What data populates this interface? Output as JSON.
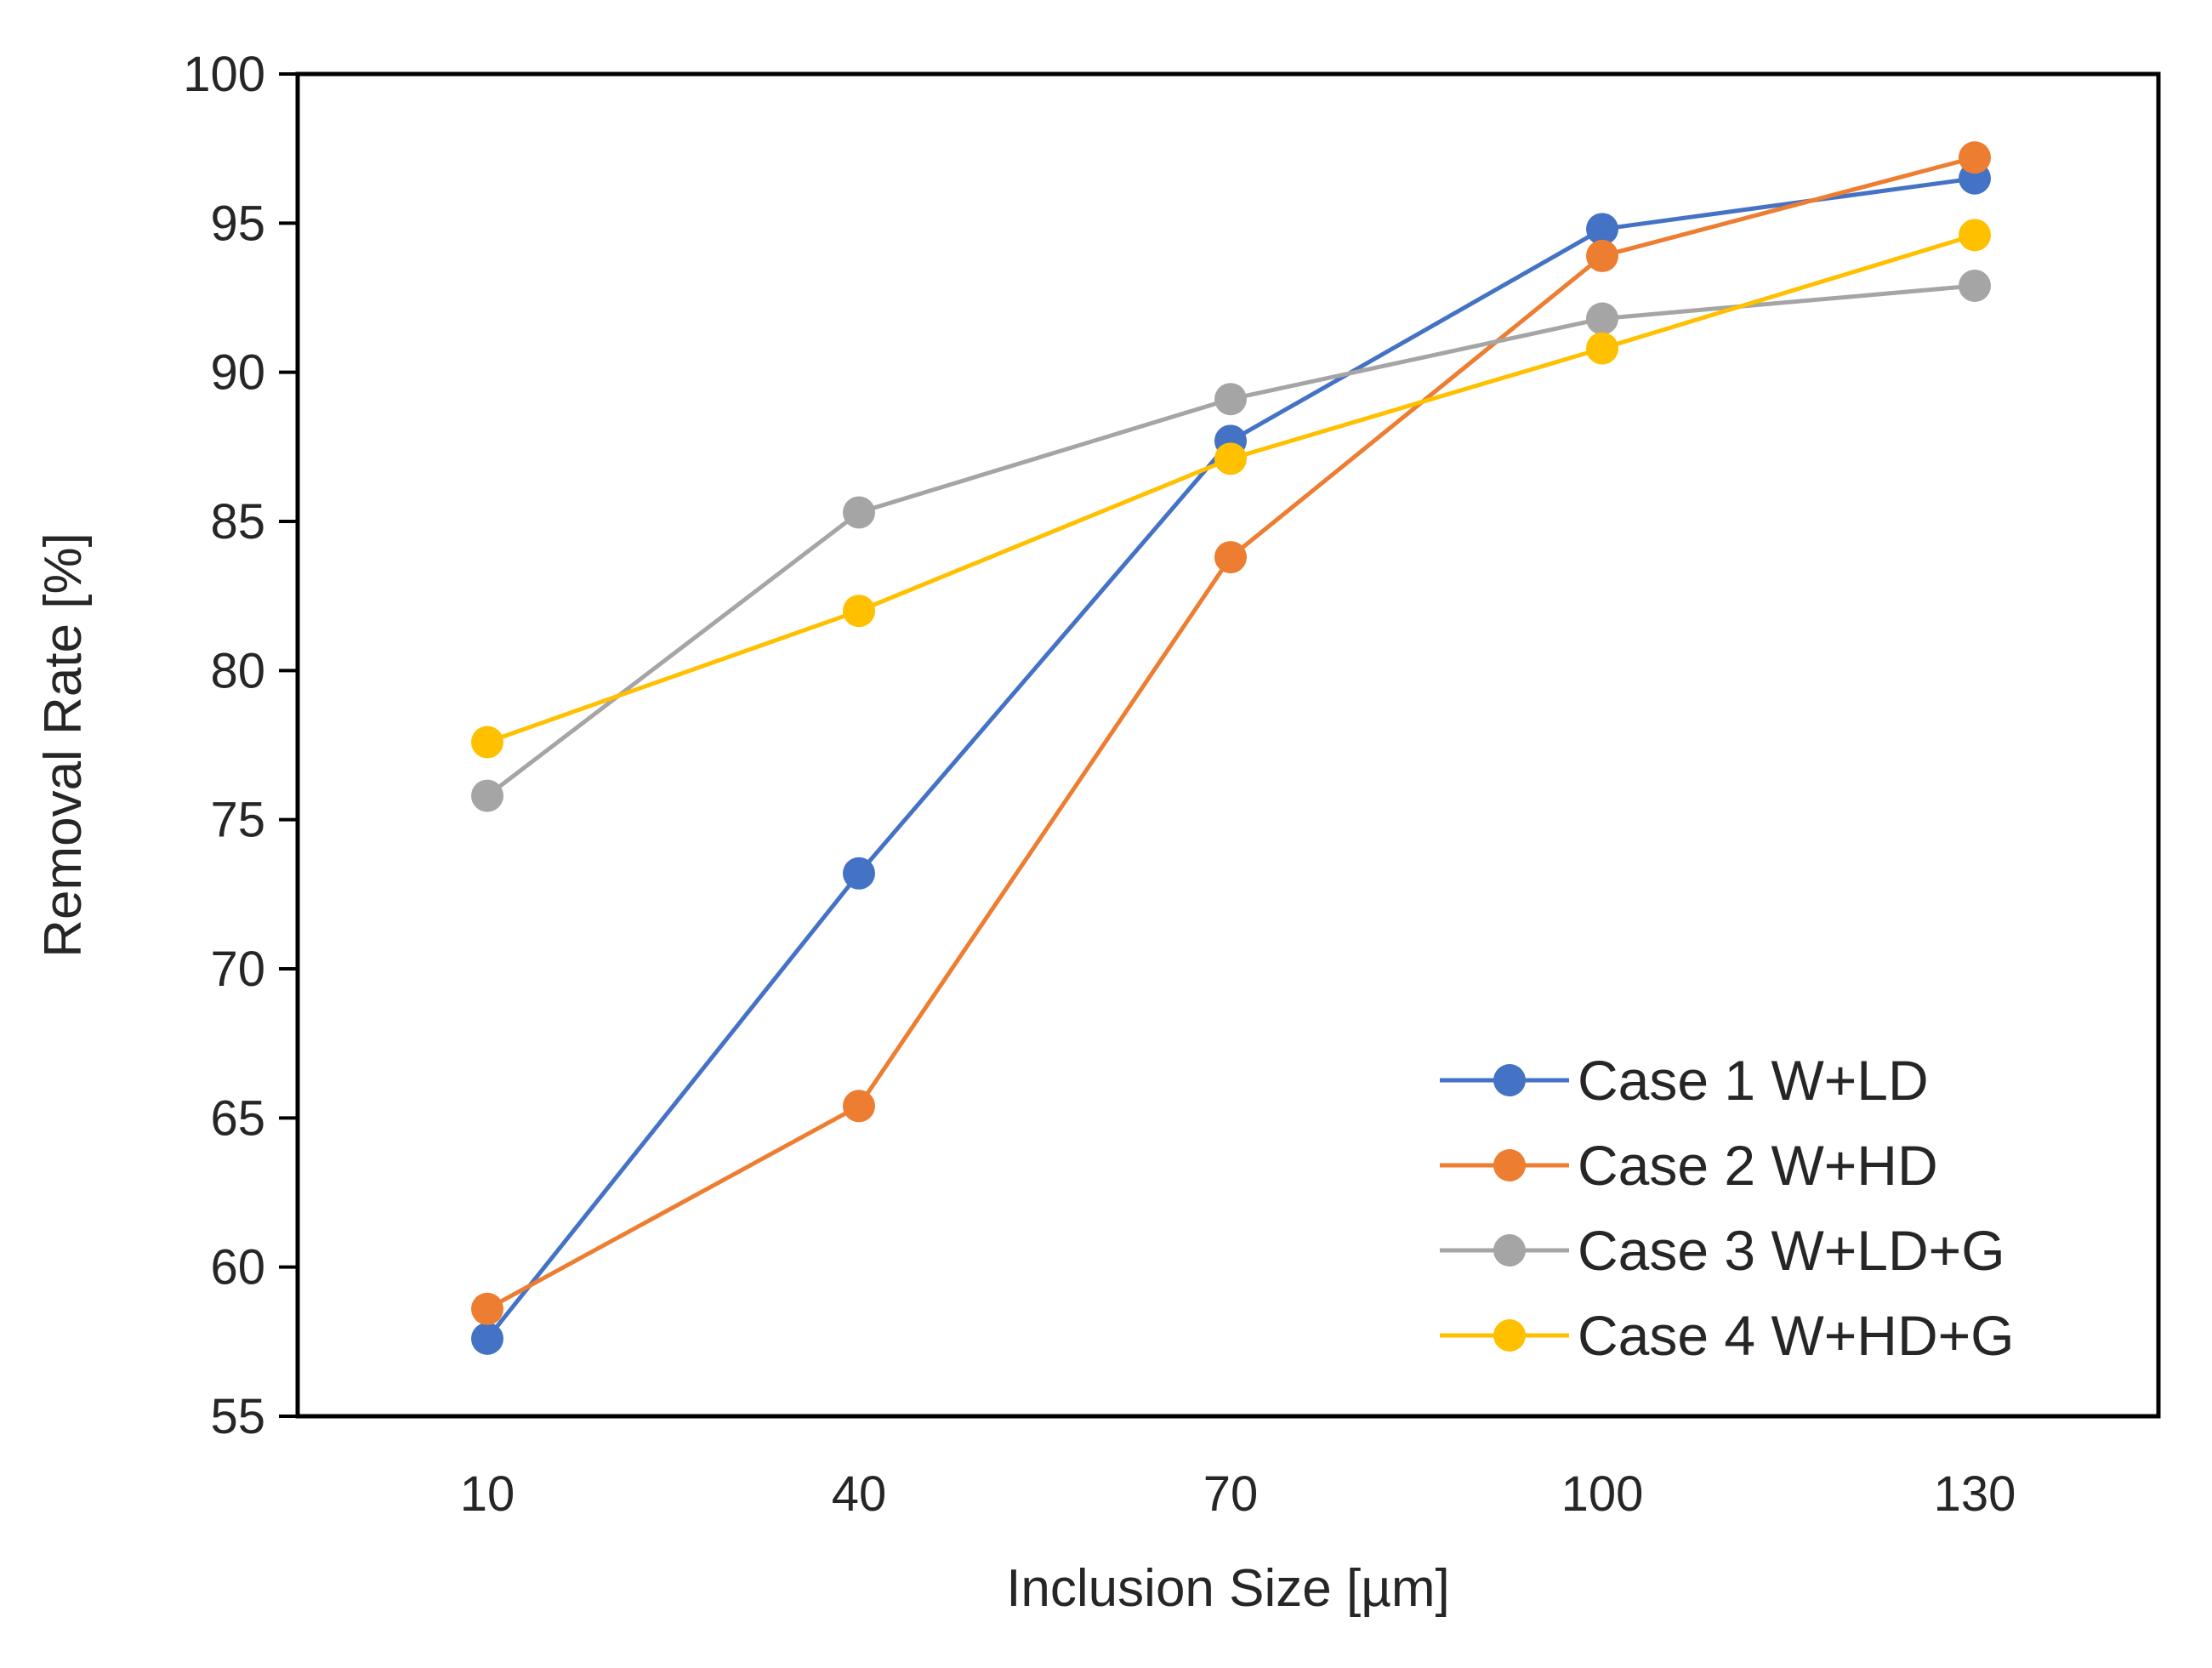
{
  "chart_data": {
    "type": "line",
    "title": "",
    "xlabel": "Inclusion Size [µm]",
    "ylabel": "Removal Rate [%]",
    "categories": [
      "10",
      "40",
      "70",
      "100",
      "130"
    ],
    "x": [
      10,
      40,
      70,
      100,
      130
    ],
    "ylim": [
      55,
      100
    ],
    "yticks": [
      55,
      60,
      65,
      70,
      75,
      80,
      85,
      90,
      95,
      100
    ],
    "grid": false,
    "legend_position": "bottom-right",
    "series": [
      {
        "name": "Case 1 W+LD",
        "color": "#4472C4",
        "values": [
          57.6,
          73.2,
          87.7,
          94.8,
          96.5
        ]
      },
      {
        "name": "Case 2 W+HD",
        "color": "#ED7D31",
        "values": [
          58.6,
          65.4,
          83.8,
          93.9,
          97.2
        ]
      },
      {
        "name": "Case 3 W+LD+G",
        "color": "#A5A5A5",
        "values": [
          75.8,
          85.3,
          89.1,
          91.8,
          92.9
        ]
      },
      {
        "name": "Case 4 W+HD+G",
        "color": "#FFC000",
        "values": [
          77.6,
          82.0,
          87.1,
          90.8,
          94.6
        ]
      }
    ]
  }
}
